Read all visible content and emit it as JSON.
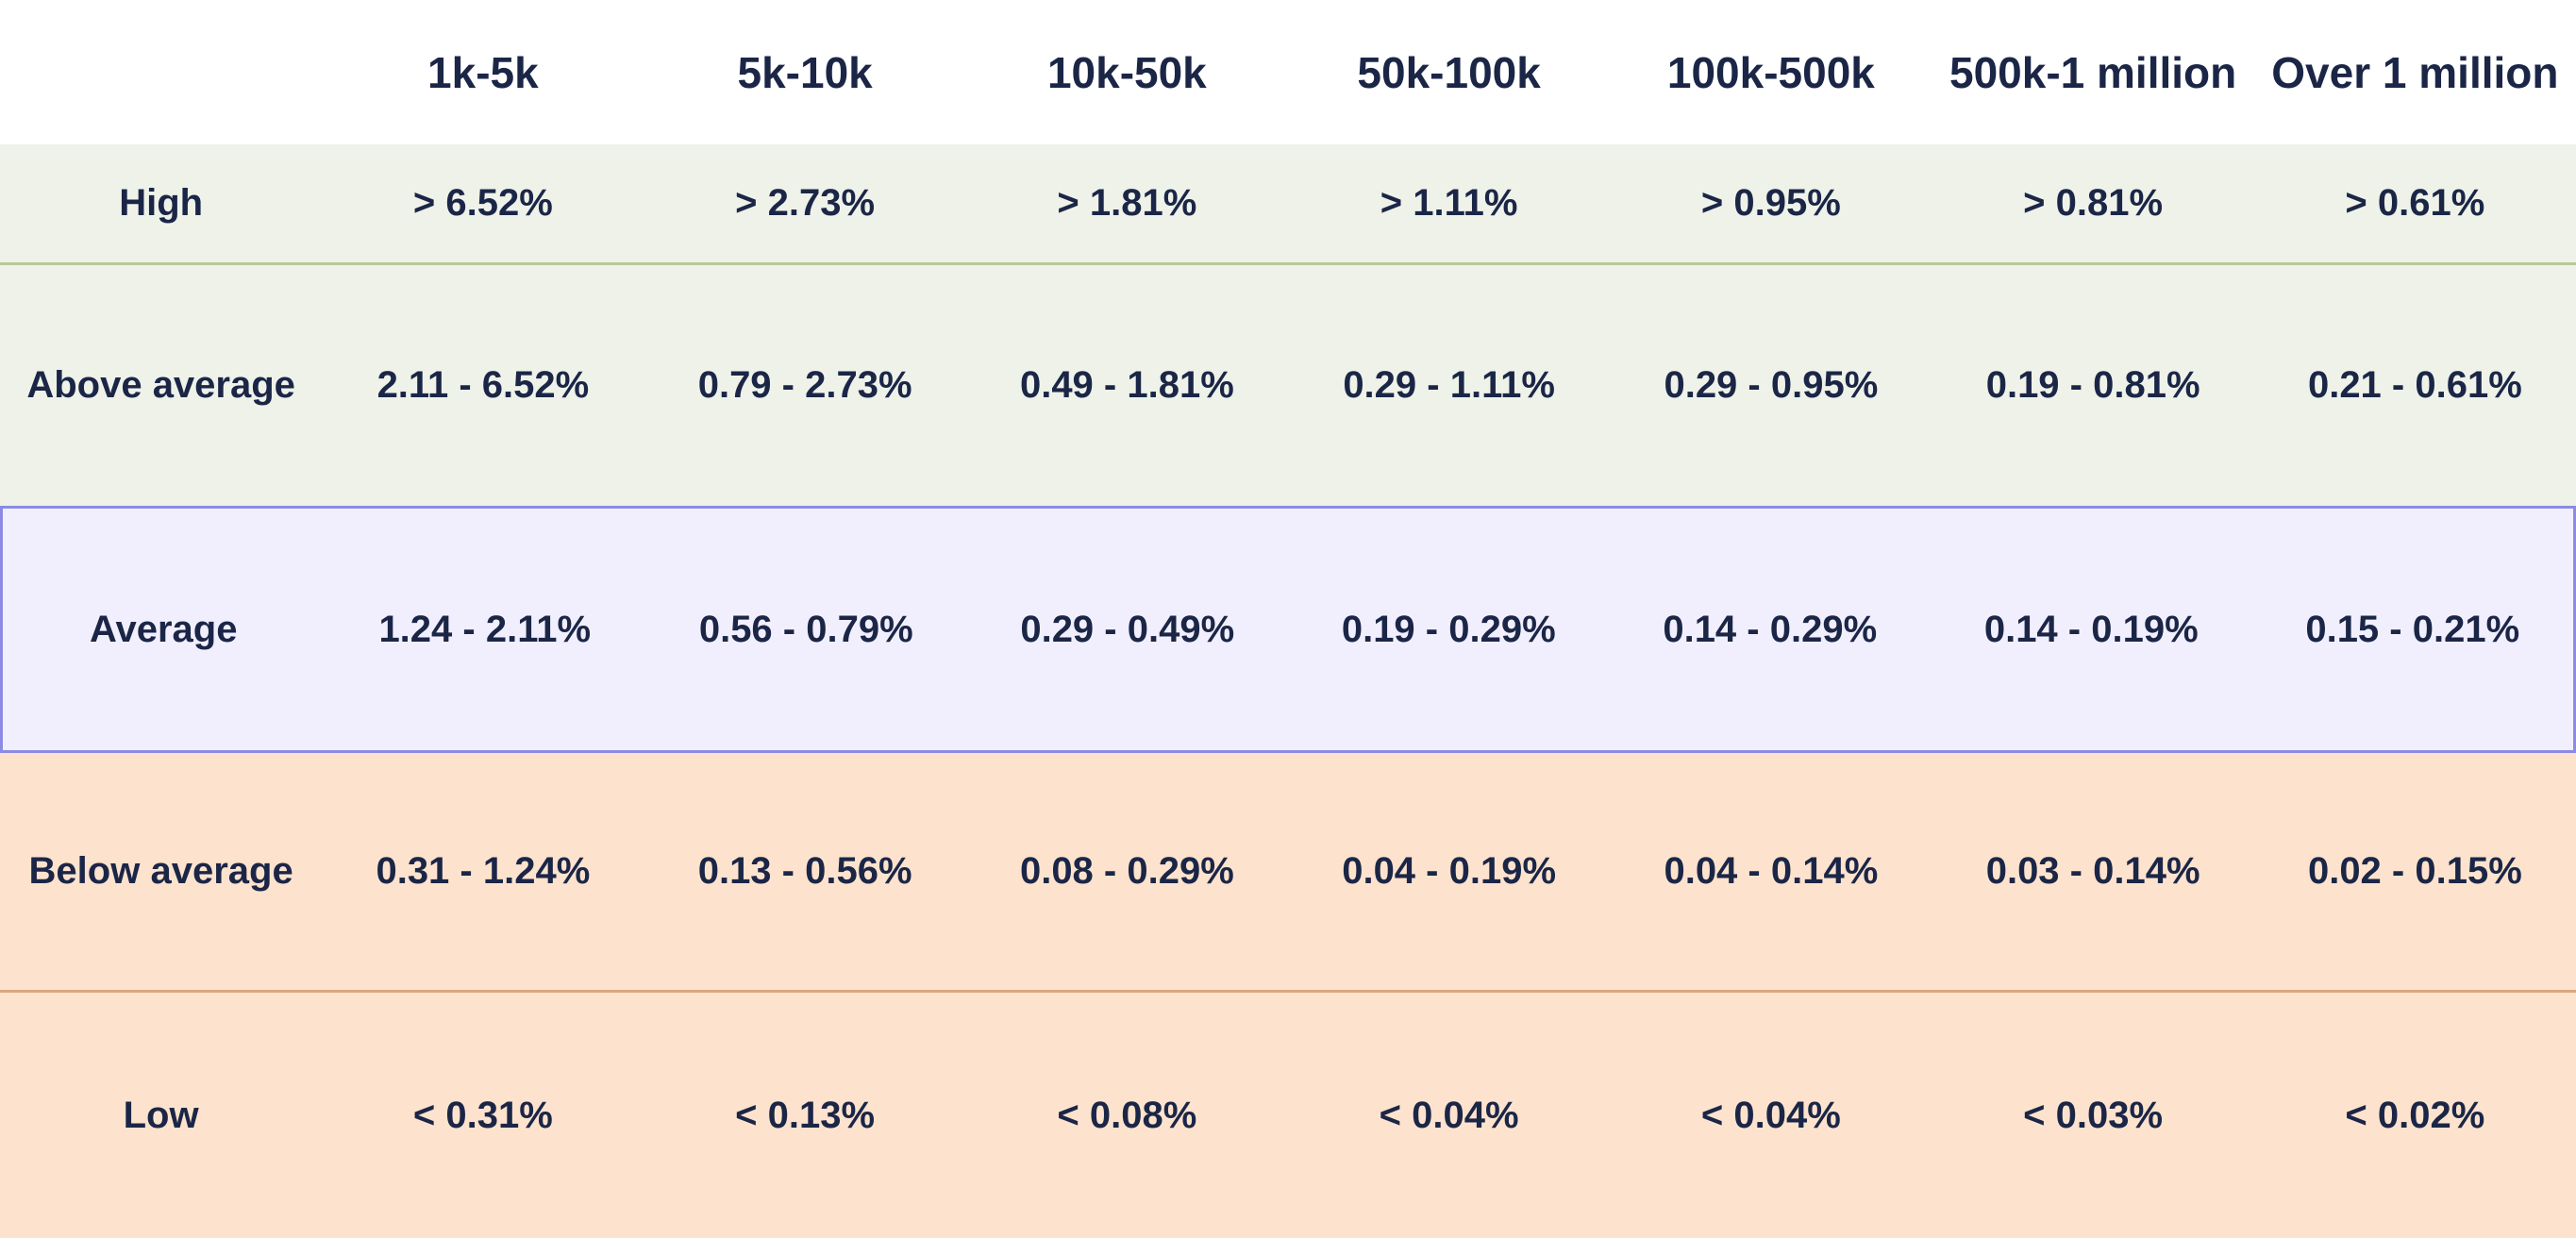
{
  "colors": {
    "text": "#1b2647",
    "green_row_bg": "#eef2e9",
    "green_divider": "#b9c996",
    "highlight_row_bg": "#f1effd",
    "highlight_row_border": "#8b8be4",
    "peach_row_bg": "#fde3cd",
    "peach_divider": "#d9a87c",
    "page_bg": "#ffffff"
  },
  "chart_data": {
    "type": "table",
    "title": "",
    "corner_label": "",
    "column_headers": [
      "1k-5k",
      "5k-10k",
      "10k-50k",
      "50k-100k",
      "100k-500k",
      "500k-1 million",
      "Over 1 million"
    ],
    "row_headers": [
      "High",
      "Above average",
      "Average",
      "Below average",
      "Low"
    ],
    "cells": [
      [
        "> 6.52%",
        "> 2.73%",
        "> 1.81%",
        "> 1.11%",
        "> 0.95%",
        "> 0.81%",
        "> 0.61%"
      ],
      [
        "2.11 - 6.52%",
        "0.79 - 2.73%",
        "0.49 - 1.81%",
        "0.29 - 1.11%",
        "0.29 - 0.95%",
        "0.19 - 0.81%",
        "0.21 - 0.61%"
      ],
      [
        "1.24 - 2.11%",
        "0.56 - 0.79%",
        "0.29 - 0.49%",
        "0.19 - 0.29%",
        "0.14 - 0.29%",
        "0.14 - 0.19%",
        "0.15 - 0.21%"
      ],
      [
        "0.31 - 1.24%",
        "0.13 - 0.56%",
        "0.08 - 0.29%",
        "0.04 - 0.19%",
        "0.04 - 0.14%",
        "0.03 - 0.14%",
        "0.02 - 0.15%"
      ],
      [
        "< 0.31%",
        "< 0.13%",
        "< 0.08%",
        "< 0.04%",
        "< 0.04%",
        "< 0.03%",
        "< 0.02%"
      ]
    ],
    "highlighted_row": "Average",
    "row_tones": [
      "green",
      "green",
      "lavender-highlight",
      "peach",
      "peach"
    ],
    "legend_position": "none",
    "grid": "row-dividers-only"
  }
}
